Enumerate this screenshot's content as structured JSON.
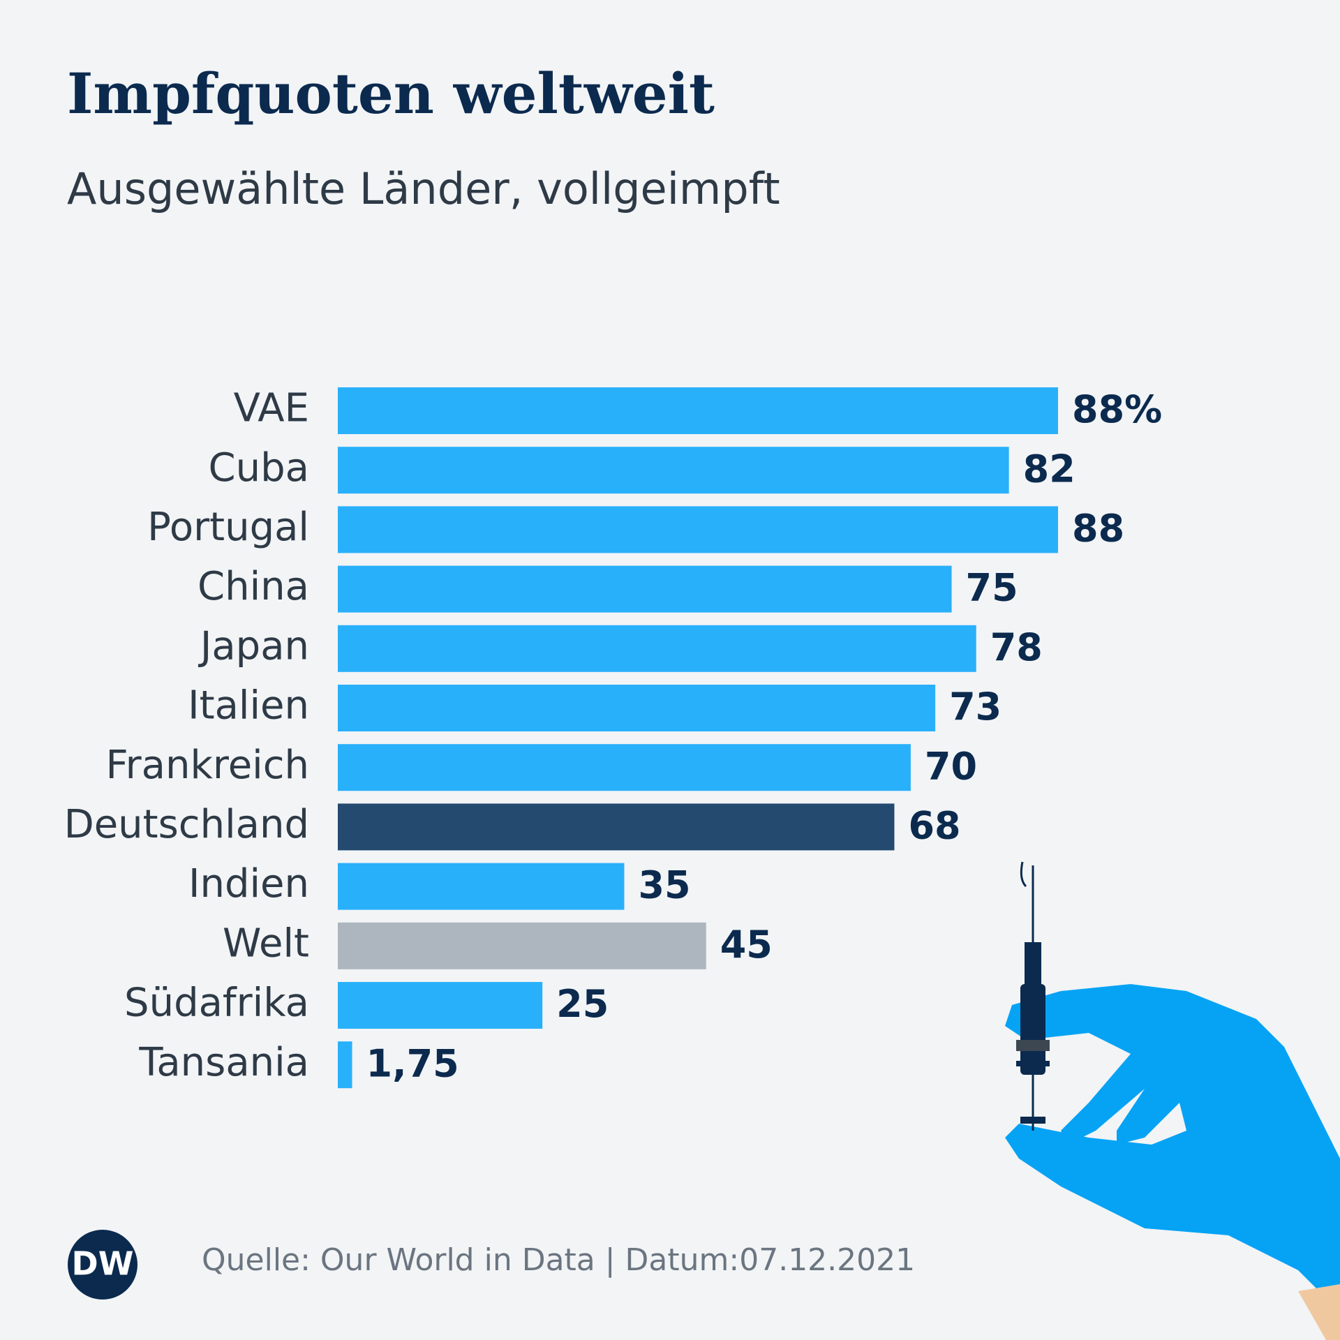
{
  "chart_data": {
    "type": "bar",
    "orientation": "horizontal",
    "title": "Impfquoten weltweit",
    "subtitle": "Ausgewählte Länder, vollgeimpft",
    "categories": [
      "VAE",
      "Cuba",
      "Portugal",
      "China",
      "Japan",
      "Italien",
      "Frankreich",
      "Deutschland",
      "Indien",
      "Welt",
      "Südafrika",
      "Tansania"
    ],
    "values": [
      88,
      82,
      88,
      75,
      78,
      73,
      70,
      68,
      35,
      45,
      25,
      1.75
    ],
    "value_labels": [
      "88%",
      "82",
      "88",
      "75",
      "78",
      "73",
      "70",
      "68",
      "35",
      "45",
      "25",
      "1,75"
    ],
    "colors": [
      "#29b0fa",
      "#29b0fa",
      "#29b0fa",
      "#29b0fa",
      "#29b0fa",
      "#29b0fa",
      "#29b0fa",
      "#244a70",
      "#29b0fa",
      "#adb5bf",
      "#29b0fa",
      "#29b0fa"
    ],
    "source": "Quelle: Our World in Data | Datum:07.12.2021",
    "logo": "DW"
  }
}
